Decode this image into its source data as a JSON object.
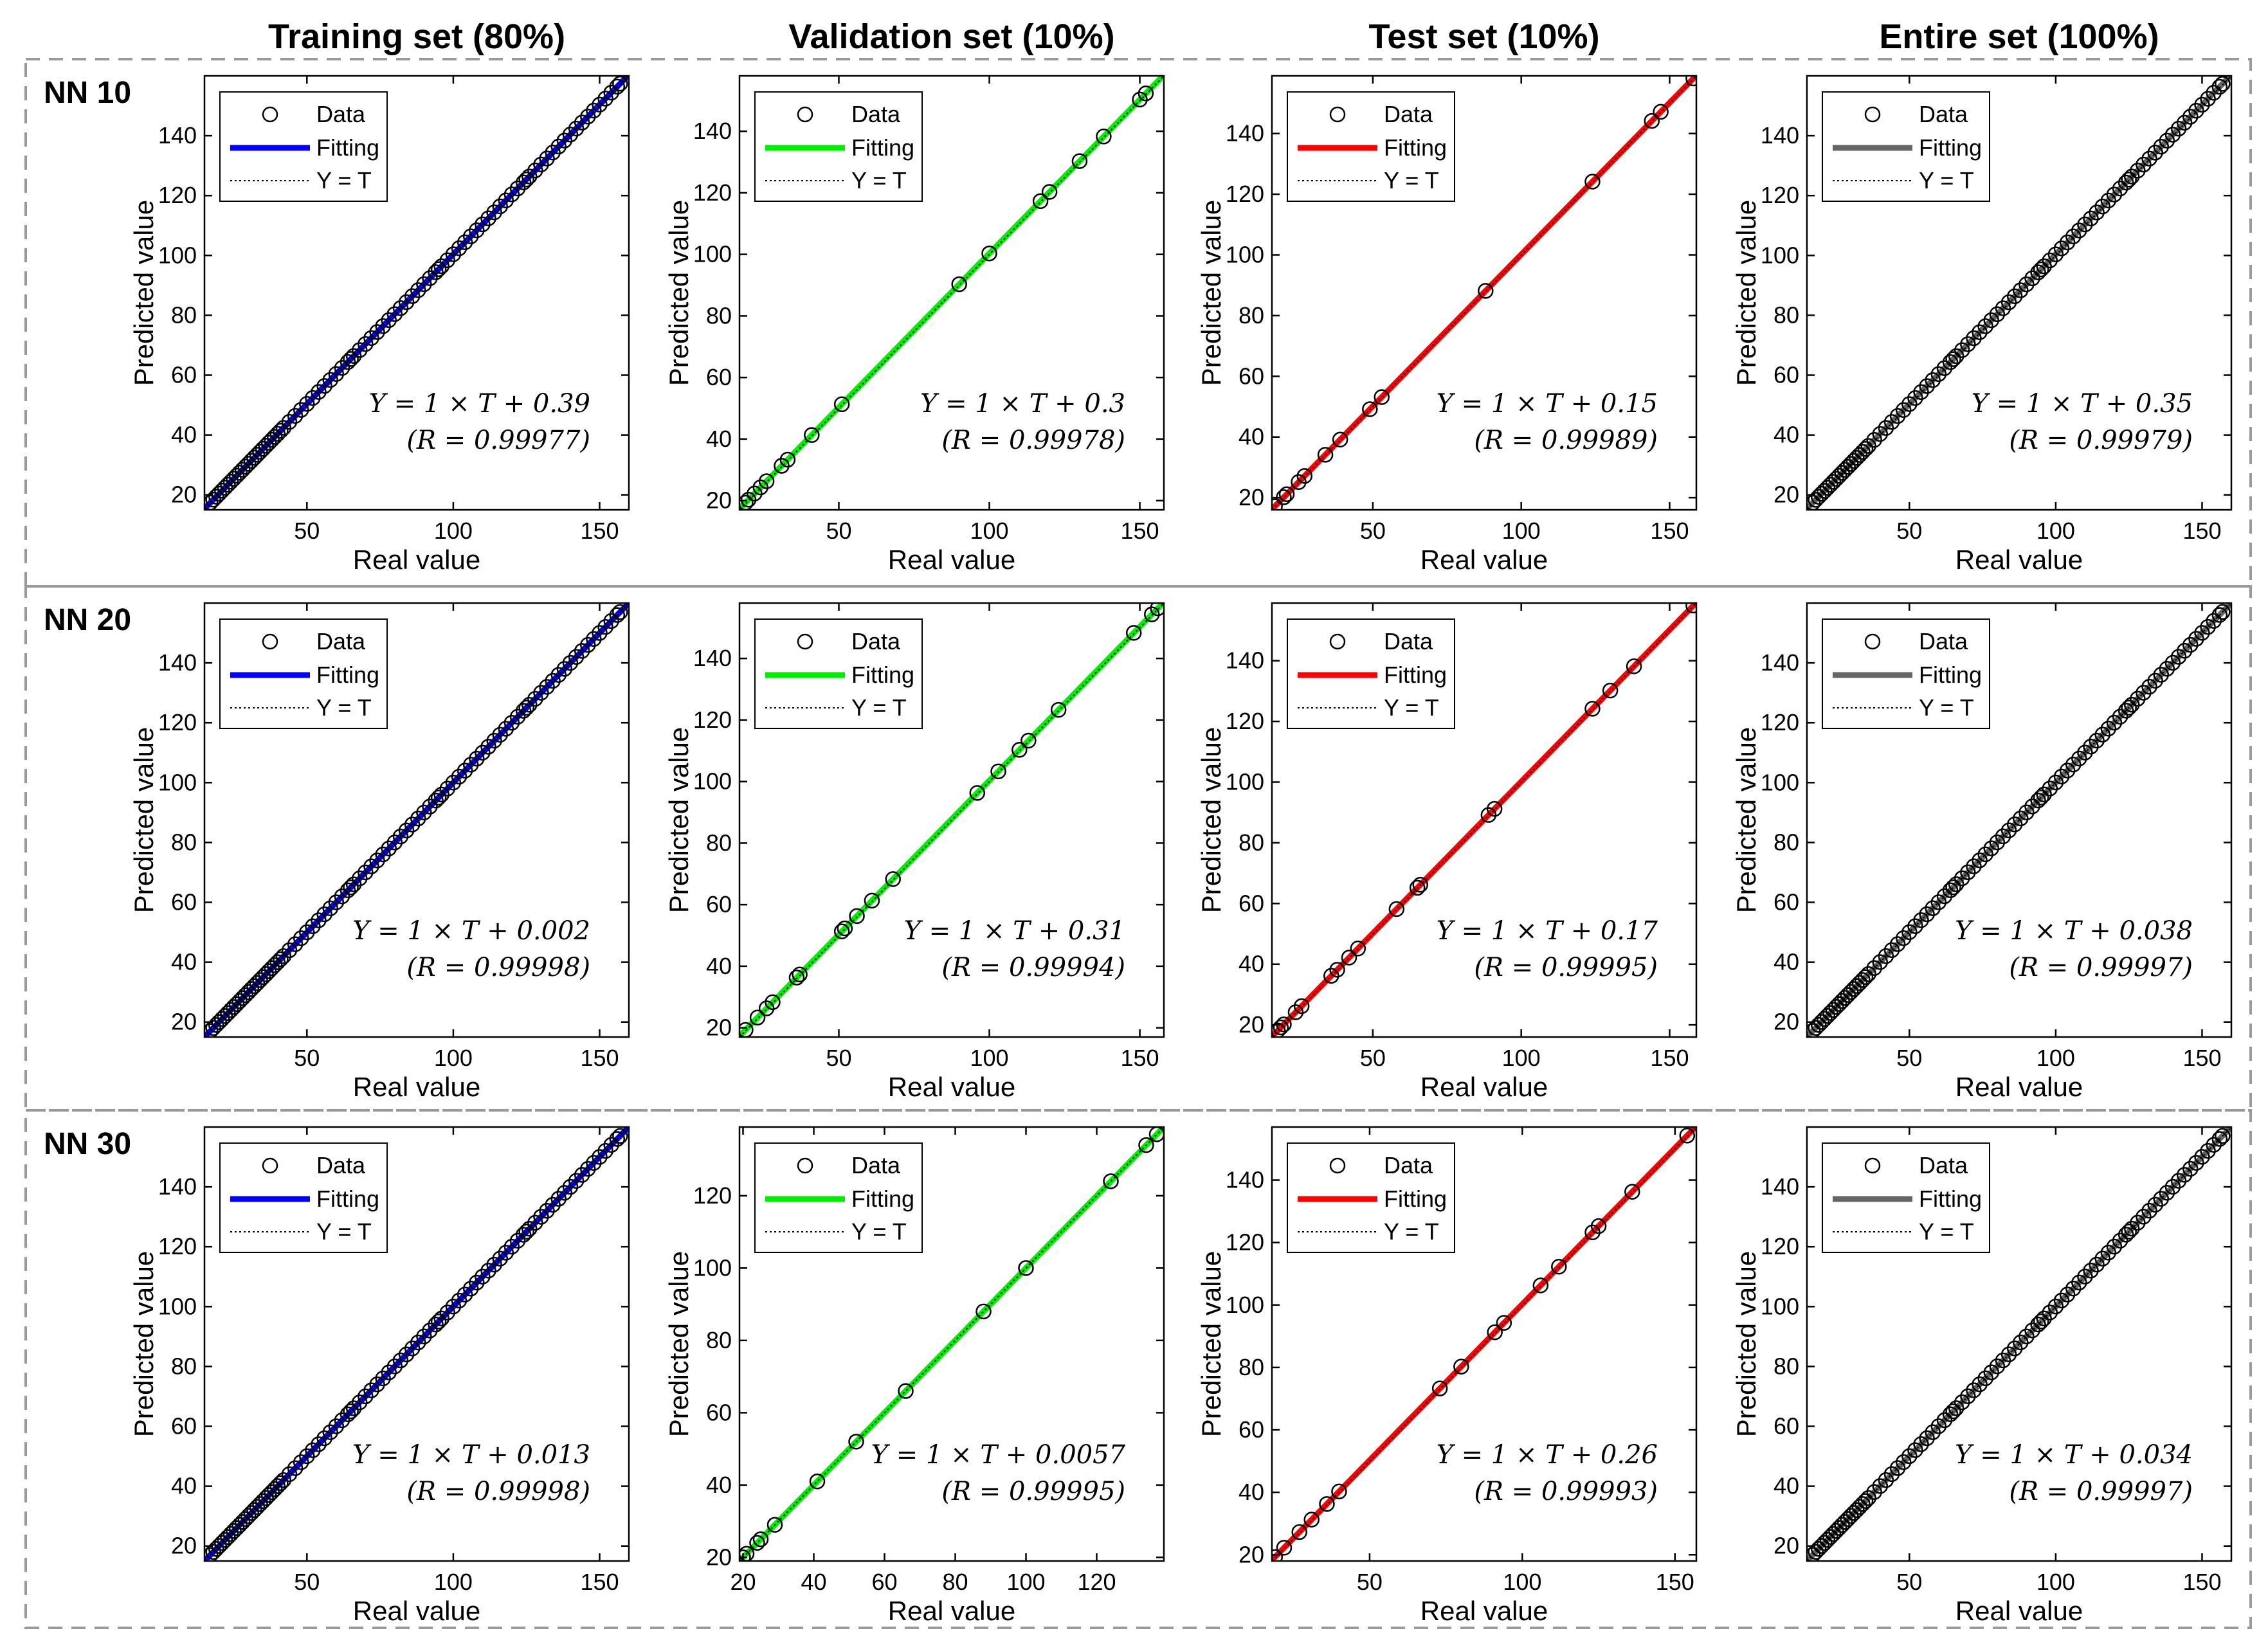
{
  "figure": {
    "column_headers": [
      "Training set (80%)",
      "Validation set (10%)",
      "Test set (10%)",
      "Entire set (100%)"
    ],
    "row_labels": [
      "NN 10",
      "NN 20",
      "NN 30"
    ]
  },
  "colors": {
    "training": "#0000ff",
    "validation": "#00ee00",
    "test": "#ff0000",
    "entire": "#666666",
    "marker": "#000000",
    "border_dash": "#999999"
  },
  "legend_labels": [
    "Data",
    "Fitting",
    "Y = T"
  ],
  "chart_data": [
    {
      "type": "scatter",
      "panel": "NN 10 - Training set (80%)",
      "xlabel": "Real value",
      "ylabel": "Predicted value",
      "xlim": [
        15,
        160
      ],
      "ylim": [
        15,
        160
      ],
      "xticks": [
        50,
        100,
        150
      ],
      "yticks": [
        20,
        40,
        60,
        80,
        100,
        120,
        140
      ],
      "series_color": "#0000ff",
      "fit": {
        "slope": 1,
        "intercept": 0.39,
        "R": 0.99977
      },
      "annotation": [
        "Y = 1 × T + 0.39",
        "(R = 0.99977)"
      ],
      "x": [
        17,
        18,
        19,
        20,
        21,
        22,
        23,
        24,
        25,
        26,
        27,
        28,
        29,
        30,
        31,
        32,
        33,
        34,
        35,
        36,
        37,
        38,
        39,
        40,
        41,
        42,
        44,
        46,
        48,
        50,
        52,
        54,
        56,
        58,
        60,
        62,
        64,
        65,
        66,
        68,
        70,
        72,
        74,
        76,
        78,
        80,
        82,
        84,
        86,
        88,
        90,
        92,
        94,
        95,
        96,
        98,
        100,
        102,
        104,
        106,
        108,
        110,
        112,
        114,
        116,
        118,
        120,
        122,
        124,
        125,
        126,
        128,
        130,
        132,
        134,
        136,
        138,
        140,
        142,
        144,
        146,
        148,
        150,
        152,
        154,
        156,
        157
      ]
    },
    {
      "type": "scatter",
      "panel": "NN 10 - Validation set (10%)",
      "xlabel": "Real value",
      "ylabel": "Predicted value",
      "xlim": [
        17,
        158
      ],
      "ylim": [
        17,
        158
      ],
      "xticks": [
        50,
        100,
        150
      ],
      "yticks": [
        20,
        40,
        60,
        80,
        100,
        120,
        140
      ],
      "series_color": "#00ee00",
      "fit": {
        "slope": 1,
        "intercept": 0.3,
        "R": 0.99978
      },
      "annotation": [
        "Y = 1 × T + 0.3",
        "(R = 0.99978)"
      ],
      "x": [
        19,
        20,
        22,
        24,
        26,
        31,
        33,
        41,
        51,
        90,
        100,
        117,
        120,
        130,
        138,
        150,
        152
      ]
    },
    {
      "type": "scatter",
      "panel": "NN 10 - Test set (10%)",
      "xlabel": "Real value",
      "ylabel": "Predicted value",
      "xlim": [
        16,
        159
      ],
      "ylim": [
        16,
        159
      ],
      "xticks": [
        50,
        100,
        150
      ],
      "yticks": [
        20,
        40,
        60,
        80,
        100,
        120,
        140
      ],
      "series_color": "#ff0000",
      "fit": {
        "slope": 1,
        "intercept": 0.15,
        "R": 0.99989
      },
      "annotation": [
        "Y = 1 × T + 0.15",
        "(R = 0.99989)"
      ],
      "x": [
        17,
        20,
        21,
        25,
        27,
        34,
        39,
        49,
        53,
        88,
        124,
        144,
        147,
        158
      ]
    },
    {
      "type": "scatter",
      "panel": "NN 10 - Entire set (100%)",
      "xlabel": "Real value",
      "ylabel": "Predicted value",
      "xlim": [
        15,
        160
      ],
      "ylim": [
        15,
        160
      ],
      "xticks": [
        50,
        100,
        150
      ],
      "yticks": [
        20,
        40,
        60,
        80,
        100,
        120,
        140
      ],
      "series_color": "#666666",
      "fit": {
        "slope": 1,
        "intercept": 0.35,
        "R": 0.99979
      },
      "annotation": [
        "Y = 1 × T + 0.35",
        "(R = 0.99979)"
      ],
      "x": [
        17,
        18,
        19,
        20,
        21,
        22,
        23,
        24,
        25,
        26,
        27,
        28,
        29,
        30,
        31,
        32,
        33,
        34,
        35,
        36,
        38,
        40,
        42,
        44,
        46,
        48,
        50,
        52,
        54,
        56,
        58,
        60,
        62,
        64,
        65,
        66,
        68,
        70,
        72,
        74,
        76,
        78,
        80,
        82,
        84,
        86,
        88,
        90,
        92,
        94,
        95,
        96,
        98,
        100,
        102,
        104,
        106,
        108,
        110,
        112,
        114,
        116,
        118,
        120,
        122,
        124,
        125,
        126,
        128,
        130,
        132,
        134,
        136,
        138,
        140,
        142,
        144,
        146,
        148,
        150,
        152,
        154,
        156,
        157
      ]
    },
    {
      "type": "scatter",
      "panel": "NN 20 - Training set (80%)",
      "xlabel": "Real value",
      "ylabel": "Predicted value",
      "xlim": [
        15,
        160
      ],
      "ylim": [
        15,
        160
      ],
      "xticks": [
        50,
        100,
        150
      ],
      "yticks": [
        20,
        40,
        60,
        80,
        100,
        120,
        140
      ],
      "series_color": "#0000ff",
      "fit": {
        "slope": 1,
        "intercept": 0.002,
        "R": 0.99998
      },
      "annotation": [
        "Y = 1 × T + 0.002",
        "(R = 0.99998)"
      ],
      "x": [
        17,
        18,
        19,
        20,
        21,
        22,
        23,
        24,
        25,
        26,
        27,
        28,
        29,
        30,
        31,
        32,
        33,
        34,
        35,
        36,
        37,
        38,
        39,
        40,
        41,
        42,
        44,
        46,
        48,
        50,
        52,
        54,
        56,
        58,
        60,
        62,
        64,
        65,
        66,
        68,
        70,
        72,
        74,
        76,
        78,
        80,
        82,
        84,
        86,
        88,
        90,
        92,
        94,
        95,
        96,
        98,
        100,
        102,
        104,
        106,
        108,
        110,
        112,
        114,
        116,
        118,
        120,
        122,
        124,
        125,
        126,
        128,
        130,
        132,
        134,
        136,
        138,
        140,
        142,
        144,
        146,
        148,
        150,
        152,
        154,
        156,
        157
      ]
    },
    {
      "type": "scatter",
      "panel": "NN 20 - Validation set (10%)",
      "xlabel": "Real value",
      "ylabel": "Predicted value",
      "xlim": [
        17,
        158
      ],
      "ylim": [
        17,
        158
      ],
      "xticks": [
        50,
        100,
        150
      ],
      "yticks": [
        20,
        40,
        60,
        80,
        100,
        120,
        140
      ],
      "series_color": "#00ee00",
      "fit": {
        "slope": 1,
        "intercept": 0.31,
        "R": 0.99994
      },
      "annotation": [
        "Y = 1 × T + 0.31",
        "(R = 0.99994)"
      ],
      "x": [
        19,
        23,
        26,
        28,
        36,
        37,
        51,
        52,
        56,
        61,
        68,
        96,
        103,
        110,
        113,
        123,
        148,
        154,
        156
      ]
    },
    {
      "type": "scatter",
      "panel": "NN 20 - Test set (10%)",
      "xlabel": "Real value",
      "ylabel": "Predicted value",
      "xlim": [
        16,
        159
      ],
      "ylim": [
        16,
        159
      ],
      "xticks": [
        50,
        100,
        150
      ],
      "yticks": [
        20,
        40,
        60,
        80,
        100,
        120,
        140
      ],
      "series_color": "#ff0000",
      "fit": {
        "slope": 1,
        "intercept": 0.17,
        "R": 0.99995
      },
      "annotation": [
        "Y = 1 × T + 0.17",
        "(R = 0.99995)"
      ],
      "x": [
        18,
        19,
        20,
        24,
        26,
        36,
        38,
        42,
        45,
        58,
        65,
        66,
        89,
        91,
        124,
        130,
        138,
        158
      ]
    },
    {
      "type": "scatter",
      "panel": "NN 20 - Entire set (100%)",
      "xlabel": "Real value",
      "ylabel": "Predicted value",
      "xlim": [
        15,
        160
      ],
      "ylim": [
        15,
        160
      ],
      "xticks": [
        50,
        100,
        150
      ],
      "yticks": [
        20,
        40,
        60,
        80,
        100,
        120,
        140
      ],
      "series_color": "#666666",
      "fit": {
        "slope": 1,
        "intercept": 0.038,
        "R": 0.99997
      },
      "annotation": [
        "Y = 1 × T + 0.038",
        "(R = 0.99997)"
      ],
      "x": [
        17,
        18,
        19,
        20,
        21,
        22,
        23,
        24,
        25,
        26,
        27,
        28,
        29,
        30,
        31,
        32,
        33,
        34,
        35,
        36,
        38,
        40,
        42,
        44,
        46,
        48,
        50,
        52,
        54,
        56,
        58,
        60,
        62,
        64,
        65,
        66,
        68,
        70,
        72,
        74,
        76,
        78,
        80,
        82,
        84,
        86,
        88,
        90,
        92,
        94,
        95,
        96,
        98,
        100,
        102,
        104,
        106,
        108,
        110,
        112,
        114,
        116,
        118,
        120,
        122,
        124,
        125,
        126,
        128,
        130,
        132,
        134,
        136,
        138,
        140,
        142,
        144,
        146,
        148,
        150,
        152,
        154,
        156,
        157
      ]
    },
    {
      "type": "scatter",
      "panel": "NN 30 - Training set (80%)",
      "xlabel": "Real value",
      "ylabel": "Predicted value",
      "xlim": [
        15,
        160
      ],
      "ylim": [
        15,
        160
      ],
      "xticks": [
        50,
        100,
        150
      ],
      "yticks": [
        20,
        40,
        60,
        80,
        100,
        120,
        140
      ],
      "series_color": "#0000ff",
      "fit": {
        "slope": 1,
        "intercept": 0.013,
        "R": 0.99998
      },
      "annotation": [
        "Y = 1 × T + 0.013",
        "(R = 0.99998)"
      ],
      "x": [
        17,
        18,
        19,
        20,
        21,
        22,
        23,
        24,
        25,
        26,
        27,
        28,
        29,
        30,
        31,
        32,
        33,
        34,
        35,
        36,
        37,
        38,
        39,
        40,
        41,
        42,
        44,
        46,
        48,
        50,
        52,
        54,
        56,
        58,
        60,
        62,
        64,
        65,
        66,
        68,
        70,
        72,
        74,
        76,
        78,
        80,
        82,
        84,
        86,
        88,
        90,
        92,
        94,
        95,
        96,
        98,
        100,
        102,
        104,
        106,
        108,
        110,
        112,
        114,
        116,
        118,
        120,
        122,
        124,
        125,
        126,
        128,
        130,
        132,
        134,
        136,
        138,
        140,
        142,
        144,
        146,
        148,
        150,
        152,
        154,
        156,
        157
      ]
    },
    {
      "type": "scatter",
      "panel": "NN 30 - Validation set (10%)",
      "xlabel": "Real value",
      "ylabel": "Predicted value",
      "xlim": [
        19,
        139
      ],
      "ylim": [
        19,
        139
      ],
      "xticks": [
        20,
        40,
        60,
        80,
        100,
        120
      ],
      "yticks": [
        20,
        40,
        60,
        80,
        100,
        120
      ],
      "series_color": "#00ee00",
      "fit": {
        "slope": 1,
        "intercept": 0.0057,
        "R": 0.99995
      },
      "annotation": [
        "Y = 1 × T + 0.0057",
        "(R = 0.99995)"
      ],
      "x": [
        20,
        21,
        24,
        25,
        29,
        41,
        52,
        66,
        88,
        100,
        124,
        134,
        137
      ]
    },
    {
      "type": "scatter",
      "panel": "NN 30 - Test set (10%)",
      "xlabel": "Real value",
      "ylabel": "Predicted value",
      "xlim": [
        18,
        157
      ],
      "ylim": [
        18,
        157
      ],
      "xticks": [
        50,
        100,
        150
      ],
      "yticks": [
        20,
        40,
        60,
        80,
        100,
        120,
        140
      ],
      "series_color": "#ff0000",
      "fit": {
        "slope": 1,
        "intercept": 0.26,
        "R": 0.99993
      },
      "annotation": [
        "Y = 1 × T + 0.26",
        "(R = 0.99993)"
      ],
      "x": [
        19,
        22,
        27,
        31,
        36,
        40,
        73,
        80,
        91,
        94,
        106,
        112,
        123,
        125,
        136,
        154
      ]
    },
    {
      "type": "scatter",
      "panel": "NN 30 - Entire set (100%)",
      "xlabel": "Real value",
      "ylabel": "Predicted value",
      "xlim": [
        15,
        160
      ],
      "ylim": [
        15,
        160
      ],
      "xticks": [
        50,
        100,
        150
      ],
      "yticks": [
        20,
        40,
        60,
        80,
        100,
        120,
        140
      ],
      "series_color": "#666666",
      "fit": {
        "slope": 1,
        "intercept": 0.034,
        "R": 0.99997
      },
      "annotation": [
        "Y = 1 × T + 0.034",
        "(R = 0.99997)"
      ],
      "x": [
        17,
        18,
        19,
        20,
        21,
        22,
        23,
        24,
        25,
        26,
        27,
        28,
        29,
        30,
        31,
        32,
        33,
        34,
        35,
        36,
        38,
        40,
        42,
        44,
        46,
        48,
        50,
        52,
        54,
        56,
        58,
        60,
        62,
        64,
        65,
        66,
        68,
        70,
        72,
        74,
        76,
        78,
        80,
        82,
        84,
        86,
        88,
        90,
        92,
        94,
        95,
        96,
        98,
        100,
        102,
        104,
        106,
        108,
        110,
        112,
        114,
        116,
        118,
        120,
        122,
        124,
        125,
        126,
        128,
        130,
        132,
        134,
        136,
        138,
        140,
        142,
        144,
        146,
        148,
        150,
        152,
        154,
        156,
        157
      ]
    }
  ]
}
